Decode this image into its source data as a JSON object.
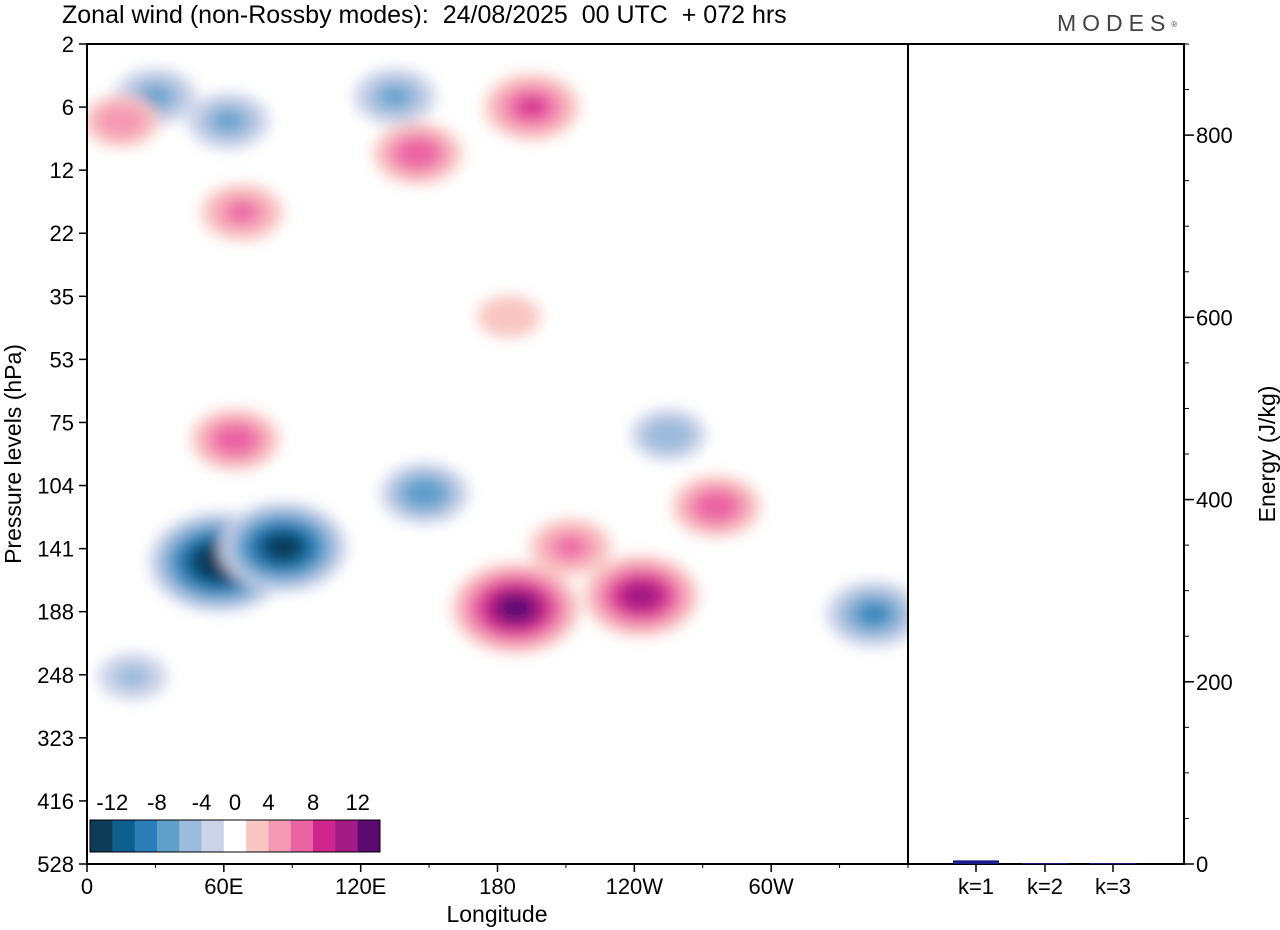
{
  "header": {
    "title": "Zonal wind (non-Rossby modes):  24/08/2025  00 UTC  + 072 hrs",
    "logo": "MODES",
    "logo_mark": "®"
  },
  "chart_data": [
    {
      "type": "heatmap",
      "title": "Zonal wind (non-Rossby modes)",
      "xlabel": "Longitude",
      "ylabel": "Pressure levels (hPa)",
      "x_ticks": [
        "0",
        "60E",
        "120E",
        "180",
        "120W",
        "60W"
      ],
      "x_tick_values": [
        0,
        60,
        120,
        180,
        240,
        300
      ],
      "xlim": [
        0,
        360
      ],
      "y_ticks": [
        "2",
        "6",
        "12",
        "22",
        "35",
        "53",
        "75",
        "104",
        "141",
        "188",
        "248",
        "323",
        "416",
        "528"
      ],
      "colorbar": {
        "tick_labels": [
          "-12",
          "-8",
          "-4",
          "0",
          "4",
          "8",
          "12"
        ],
        "levels": [
          -14,
          -12,
          -10,
          -8,
          -6,
          -4,
          -2,
          2,
          4,
          6,
          8,
          10,
          12,
          14
        ],
        "colors": [
          "#0d3b58",
          "#0e5f8e",
          "#2a7fb8",
          "#5f9fca",
          "#9dbbdc",
          "#cdd3e8",
          "#ffffff",
          "#f8c6c3",
          "#f59ab6",
          "#ea63a3",
          "#cf268c",
          "#a21a84",
          "#5b0a72"
        ]
      },
      "features": [
        {
          "lon": 58,
          "level": 150,
          "value": -15
        },
        {
          "lon": 86,
          "level": 140,
          "value": -13
        },
        {
          "lon": 148,
          "level": 108,
          "value": -7
        },
        {
          "lon": 255,
          "level": 80,
          "value": -5
        },
        {
          "lon": 345,
          "level": 190,
          "value": -8
        },
        {
          "lon": 20,
          "level": 250,
          "value": -4
        },
        {
          "lon": 30,
          "level": 5,
          "value": -6
        },
        {
          "lon": 62,
          "level": 7,
          "value": -6
        },
        {
          "lon": 135,
          "level": 5,
          "value": -6
        },
        {
          "lon": 188,
          "level": 185,
          "value": 13
        },
        {
          "lon": 243,
          "level": 175,
          "value": 11
        },
        {
          "lon": 212,
          "level": 140,
          "value": 6
        },
        {
          "lon": 276,
          "level": 115,
          "value": 7
        },
        {
          "lon": 65,
          "level": 82,
          "value": 7
        },
        {
          "lon": 195,
          "level": 6,
          "value": 8
        },
        {
          "lon": 145,
          "level": 10,
          "value": 7
        },
        {
          "lon": 15,
          "level": 7,
          "value": 5
        },
        {
          "lon": 68,
          "level": 18,
          "value": 6
        },
        {
          "lon": 185,
          "level": 40,
          "value": 3
        }
      ]
    },
    {
      "type": "bar",
      "categories": [
        "k=1",
        "k=2",
        "k=3"
      ],
      "values": [
        4,
        1,
        1
      ],
      "ylabel": "Energy (J/kg)",
      "y_ticks": [
        "0",
        "200",
        "400",
        "600",
        "800"
      ],
      "y_tick_values": [
        0,
        200,
        400,
        600,
        800
      ],
      "ylim": [
        0,
        900
      ],
      "bar_color": "#1b1b8c"
    }
  ]
}
